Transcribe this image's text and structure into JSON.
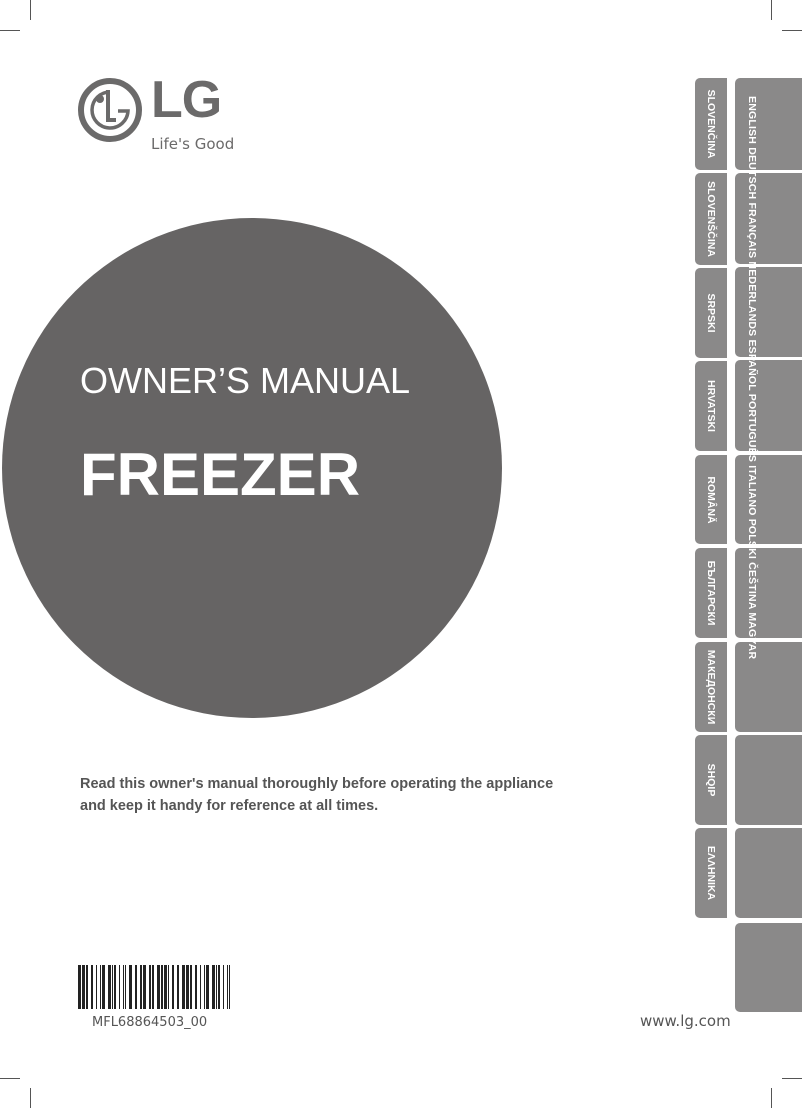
{
  "brand": {
    "name": "LG",
    "tagline": "Life's Good"
  },
  "cover": {
    "title": "OWNER’S MANUAL",
    "product": "FREEZER",
    "note_line1": "Read this owner's manual thoroughly before operating the appliance",
    "note_line2": "and keep it handy for reference at all times."
  },
  "barcode": {
    "code": "MFL68864503_00"
  },
  "url": "www.lg.com",
  "language_tabs": {
    "inner": [
      "SLOVENČINA",
      "SLOVENŠČINA",
      "SRPSKI",
      "HRVATSKI",
      "ROMÂNĂ",
      "БЪЛГАРСКИ",
      "МАКЕДОНСКИ",
      "SHQIP",
      "ΕΛΛΗΝΙΚΑ"
    ],
    "outer_text": "ENGLISH DEUTSCH FRANÇAIS NEDERLANDS ESPAÑOL PORTUGUÊS ITALIANO POLSKI ČEŠTINA MAGYAR"
  },
  "colors": {
    "circle": "#666464",
    "tab": "#8a8989",
    "logo": "#6b6a6a"
  }
}
